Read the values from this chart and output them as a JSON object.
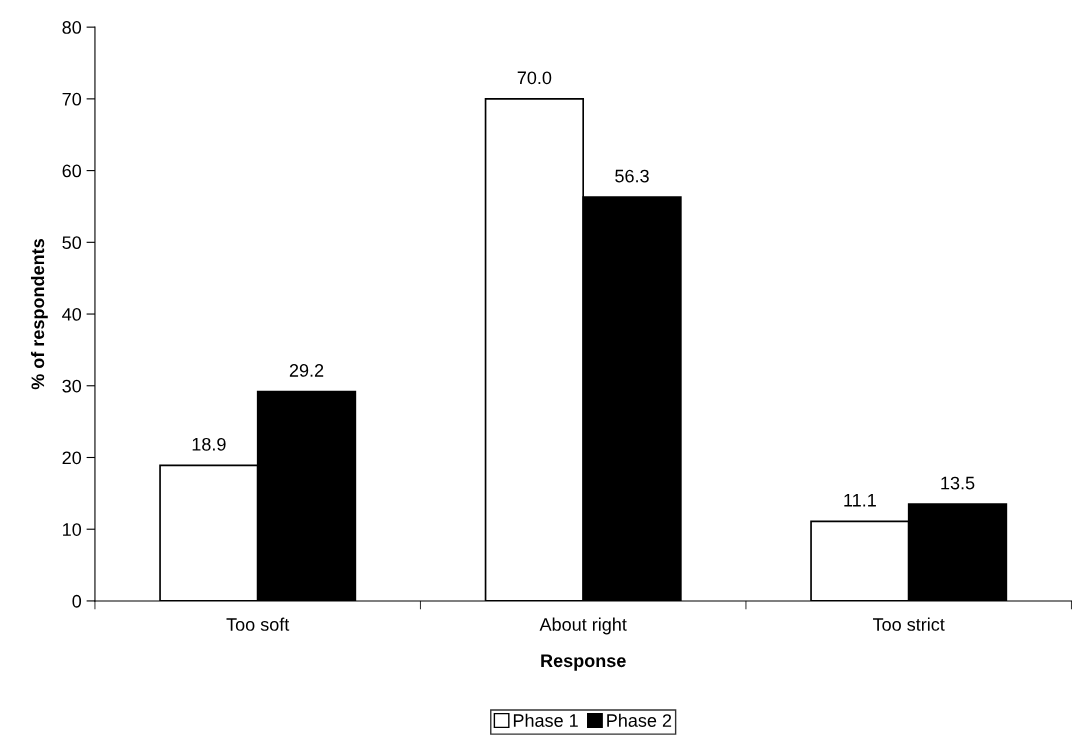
{
  "chart_data": {
    "type": "bar",
    "xlabel": "Response",
    "ylabel": "% of respondents",
    "categories": [
      "Too soft",
      "About right",
      "Too strict"
    ],
    "series": [
      {
        "name": "Phase 1",
        "color": "#ffffff",
        "values": [
          18.9,
          70.0,
          11.1
        ],
        "value_labels": [
          "18.9",
          "70.0",
          "11.1"
        ]
      },
      {
        "name": "Phase 2",
        "color": "#000000",
        "values": [
          29.2,
          56.3,
          13.5
        ],
        "value_labels": [
          "29.2",
          "56.3",
          "13.5"
        ]
      }
    ],
    "ylim": [
      0,
      80
    ],
    "yticks": [
      0,
      10,
      20,
      30,
      40,
      50,
      60,
      70,
      80
    ],
    "grid": false,
    "legend": "bottom"
  }
}
